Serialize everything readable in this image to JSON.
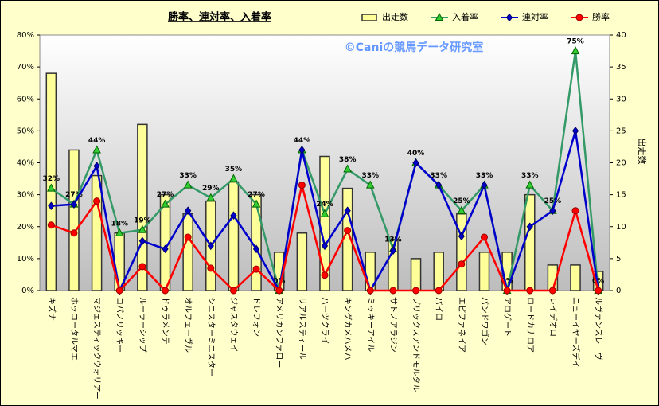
{
  "chart_data": {
    "type": "bar-line",
    "title": "勝率、連対率、入着率",
    "watermark": "©Caniの競馬データ研究室",
    "y2_label": "出走数",
    "legend": "top-right",
    "categories": [
      "キズナ",
      "ホッコータルマエ",
      "マジェスティックウォリアー",
      "コパノリッキー",
      "ルーラーシップ",
      "ドゥラメンテ",
      "オルフェーヴル",
      "シニスターミニスター",
      "ジャスタウェイ",
      "ドレフォン",
      "アメリカンファロー",
      "リアルスティール",
      "ハーツクライ",
      "キングカメハメハ",
      "ミッキーアイル",
      "サトノアラジン",
      "ブリックスアンドモルタル",
      "パイロ",
      "エピファネイア",
      "バンドワゴン",
      "アロゲート",
      "ロードカナロア",
      "レイデオロ",
      "ニューイヤーズデイ",
      "ルヴァンスレーヴ"
    ],
    "series": [
      {
        "name": "出走数",
        "kind": "bar",
        "axis": "y2",
        "color": "#ffff99",
        "values": [
          34,
          22,
          18,
          9,
          26,
          15,
          12,
          14,
          17,
          15,
          6,
          9,
          21,
          16,
          6,
          8,
          5,
          6,
          12,
          6,
          6,
          15,
          4,
          4,
          3
        ]
      },
      {
        "name": "入着率",
        "kind": "line",
        "marker": "triangle",
        "color": "#339966",
        "marker_color": "#33cc33",
        "values": [
          32,
          27,
          44,
          18,
          19,
          27,
          33,
          29,
          35,
          27,
          0,
          44,
          24,
          38,
          33,
          13,
          40,
          33,
          25,
          33,
          0,
          33,
          25,
          75,
          0
        ],
        "value_labels": [
          "32%",
          "27%",
          "44%",
          "18%",
          "19%",
          "27%",
          "33%",
          "29%",
          "35%",
          "27%",
          "0%",
          "44%",
          "24%",
          "38%",
          "33%",
          "13%",
          "40%",
          "33%",
          "25%",
          "33%",
          "0%",
          "33%",
          "25%",
          "75%",
          "0%"
        ]
      },
      {
        "name": "連対率",
        "kind": "line",
        "marker": "diamond",
        "color": "#0000cc",
        "marker_color": "#0000cc",
        "values": [
          26.5,
          27,
          39,
          0,
          15.5,
          13,
          25,
          14,
          23.5,
          13,
          0,
          44,
          14,
          25,
          0,
          12.5,
          40,
          33,
          17,
          33,
          0,
          20,
          25,
          50,
          0
        ]
      },
      {
        "name": "勝率",
        "kind": "line",
        "marker": "circle",
        "color": "#ff0000",
        "marker_color": "#ff0000",
        "values": [
          20.5,
          18,
          28,
          0,
          7.5,
          0,
          16.7,
          7,
          0,
          6.7,
          0,
          33,
          4.8,
          18.8,
          0,
          0,
          0,
          0,
          8.3,
          16.7,
          0,
          0,
          0,
          25,
          0
        ]
      }
    ],
    "ylim": [
      0,
      80
    ],
    "yticks": [
      {
        "value": 0,
        "label": "0%"
      },
      {
        "value": 10,
        "label": "10%"
      },
      {
        "value": 20,
        "label": "20%"
      },
      {
        "value": 30,
        "label": "30%"
      },
      {
        "value": 40,
        "label": "40%"
      },
      {
        "value": 50,
        "label": "50%"
      },
      {
        "value": 60,
        "label": "60%"
      },
      {
        "value": 70,
        "label": "70%"
      },
      {
        "value": 80,
        "label": "80%"
      }
    ],
    "y2lim": [
      0,
      40
    ],
    "y2ticks": [
      0,
      5,
      10,
      15,
      20,
      25,
      30,
      35,
      40
    ]
  }
}
